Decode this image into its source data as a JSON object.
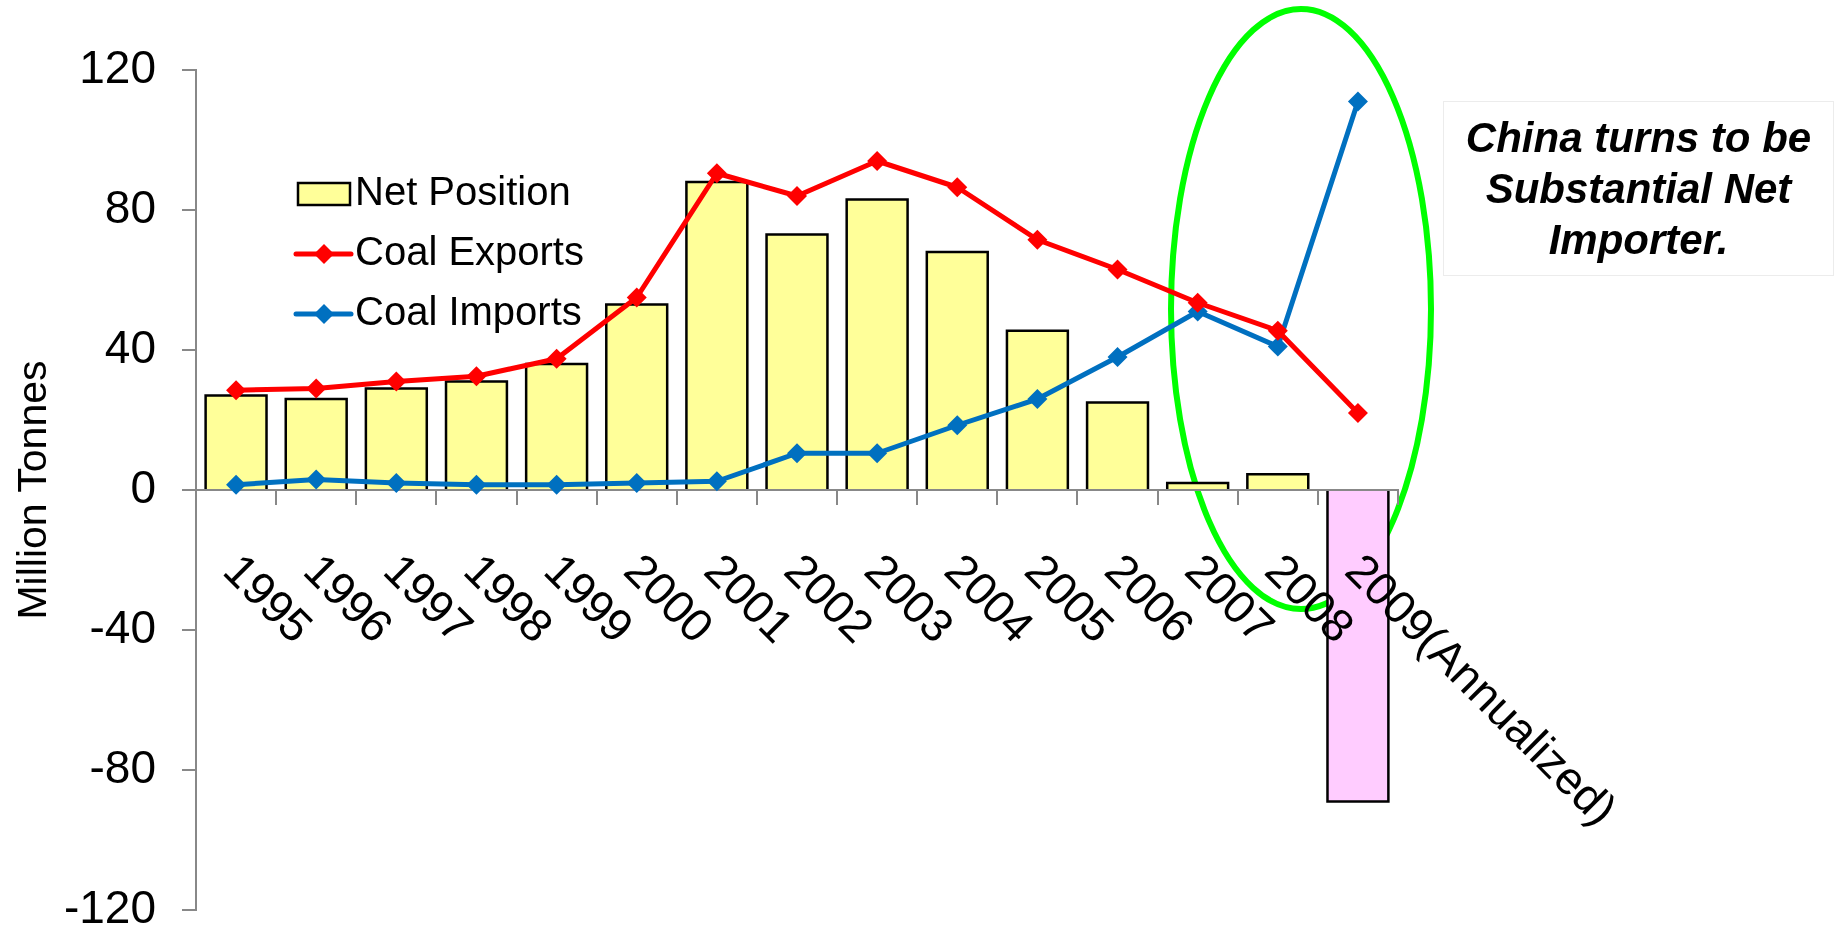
{
  "chart_data": {
    "type": "bar",
    "categories": [
      "1995",
      "1996",
      "1997",
      "1998",
      "1999",
      "2000",
      "2001",
      "2002",
      "2003",
      "2004",
      "2005",
      "2006",
      "2007",
      "2008",
      "2009(Annualized)"
    ],
    "series": [
      {
        "name": "Net Position",
        "colors": [
          "#ffff99",
          "#ffff99",
          "#ffff99",
          "#ffff99",
          "#ffff99",
          "#ffff99",
          "#ffff99",
          "#ffff99",
          "#ffff99",
          "#ffff99",
          "#ffff99",
          "#ffff99",
          "#ffff99",
          "#ffff99",
          "#ffccff"
        ],
        "values": [
          27,
          26,
          29,
          31,
          36,
          53,
          88,
          73,
          83,
          68,
          45.5,
          25,
          2,
          4.5,
          -89
        ]
      },
      {
        "name": "Coal Exports",
        "type": "line",
        "color": "#ff0000",
        "values": [
          28.5,
          29,
          31,
          32.5,
          37.5,
          55,
          90.5,
          84,
          94,
          86.5,
          71.5,
          63,
          53.5,
          45.5,
          22
        ]
      },
      {
        "name": "Coal Imports",
        "type": "line",
        "color": "#0070c0",
        "values": [
          1.5,
          3,
          2,
          1.5,
          1.5,
          2,
          2.5,
          10.5,
          10.5,
          18.5,
          26,
          38,
          51,
          41,
          111
        ]
      }
    ],
    "ylabel": "Million Tonnes",
    "ylim": [
      -120,
      120
    ],
    "yticks": [
      -120,
      -80,
      -40,
      0,
      40,
      80,
      120
    ],
    "grid": false,
    "legend": "top left",
    "marker": "diamond",
    "annotations": [
      "China turns to be Substantial Net Importer."
    ]
  }
}
